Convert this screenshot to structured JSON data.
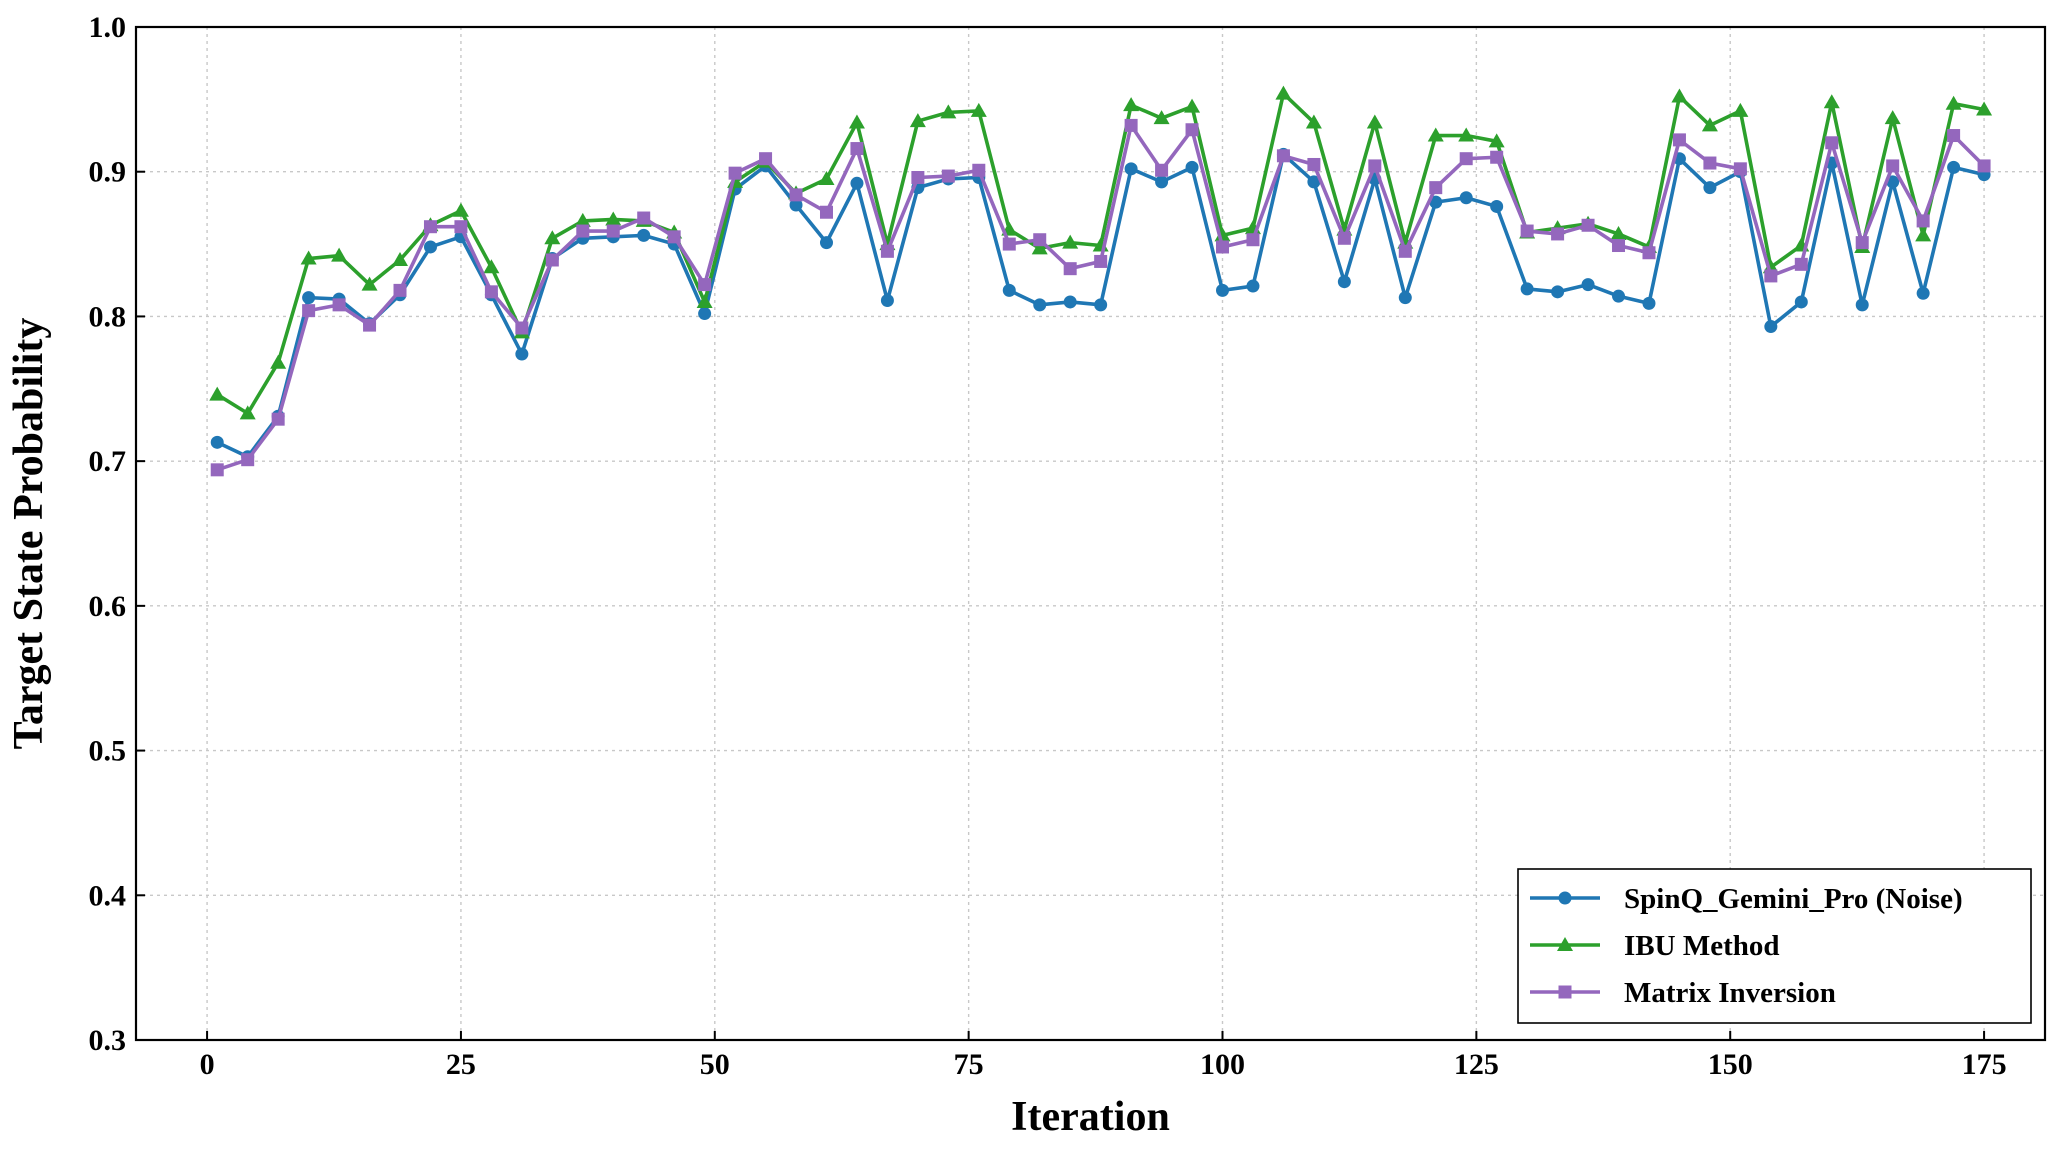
{
  "chart_data": {
    "type": "line",
    "title": "",
    "xlabel": "Iteration",
    "ylabel": "Target State Probability",
    "xlim": [
      -7,
      181
    ],
    "ylim": [
      0.3,
      1.0
    ],
    "xticks": [
      0,
      25,
      50,
      75,
      100,
      125,
      150,
      175
    ],
    "yticks": [
      0.3,
      0.4,
      0.5,
      0.6,
      0.7,
      0.8,
      0.9,
      1.0
    ],
    "grid": true,
    "legend_position": "bottom-right",
    "x": [
      1,
      4,
      7,
      10,
      13,
      16,
      19,
      22,
      25,
      28,
      31,
      34,
      37,
      40,
      43,
      46,
      49,
      52,
      55,
      58,
      61,
      64,
      67,
      70,
      73,
      76,
      79,
      82,
      85,
      88,
      91,
      94,
      97,
      100,
      103,
      106,
      109,
      112,
      115,
      118,
      121,
      124,
      127,
      130,
      133,
      136,
      139,
      142,
      145,
      148,
      151,
      154,
      157,
      160,
      163,
      166,
      169,
      172,
      175
    ],
    "series": [
      {
        "name": "SpinQ_Gemini_Pro (Noise)",
        "color": "#1f77b4",
        "marker": "circle",
        "values": [
          0.713,
          0.703,
          0.731,
          0.813,
          0.812,
          0.795,
          0.815,
          0.848,
          0.855,
          0.815,
          0.774,
          0.84,
          0.854,
          0.855,
          0.856,
          0.85,
          0.802,
          0.888,
          0.904,
          0.877,
          0.851,
          0.892,
          0.811,
          0.889,
          0.895,
          0.896,
          0.818,
          0.808,
          0.81,
          0.808,
          0.902,
          0.893,
          0.903,
          0.818,
          0.821,
          0.912,
          0.893,
          0.824,
          0.895,
          0.813,
          0.879,
          0.882,
          0.876,
          0.819,
          0.817,
          0.822,
          0.814,
          0.809,
          0.909,
          0.889,
          0.9,
          0.793,
          0.81,
          0.906,
          0.808,
          0.893,
          0.816,
          0.903,
          0.898
        ]
      },
      {
        "name": "IBU Method",
        "color": "#2ca02c",
        "marker": "triangle",
        "values": [
          0.746,
          0.733,
          0.768,
          0.84,
          0.842,
          0.822,
          0.839,
          0.863,
          0.873,
          0.834,
          0.789,
          0.854,
          0.866,
          0.867,
          0.866,
          0.858,
          0.81,
          0.893,
          0.907,
          0.885,
          0.895,
          0.934,
          0.85,
          0.935,
          0.941,
          0.942,
          0.86,
          0.847,
          0.851,
          0.849,
          0.946,
          0.937,
          0.945,
          0.856,
          0.861,
          0.954,
          0.934,
          0.86,
          0.934,
          0.851,
          0.925,
          0.925,
          0.921,
          0.858,
          0.861,
          0.864,
          0.857,
          0.848,
          0.952,
          0.932,
          0.942,
          0.834,
          0.849,
          0.948,
          0.848,
          0.937,
          0.856,
          0.947,
          0.943
        ]
      },
      {
        "name": "Matrix Inversion",
        "color": "#9467bd",
        "marker": "square",
        "values": [
          0.694,
          0.701,
          0.729,
          0.804,
          0.808,
          0.794,
          0.818,
          0.862,
          0.862,
          0.817,
          0.792,
          0.839,
          0.859,
          0.859,
          0.868,
          0.855,
          0.822,
          0.899,
          0.909,
          0.884,
          0.872,
          0.916,
          0.845,
          0.896,
          0.897,
          0.901,
          0.85,
          0.853,
          0.833,
          0.838,
          0.932,
          0.901,
          0.929,
          0.848,
          0.853,
          0.911,
          0.905,
          0.854,
          0.904,
          0.845,
          0.889,
          0.909,
          0.91,
          0.859,
          0.857,
          0.863,
          0.849,
          0.844,
          0.922,
          0.906,
          0.902,
          0.828,
          0.836,
          0.92,
          0.851,
          0.904,
          0.866,
          0.925,
          0.904
        ]
      }
    ]
  }
}
